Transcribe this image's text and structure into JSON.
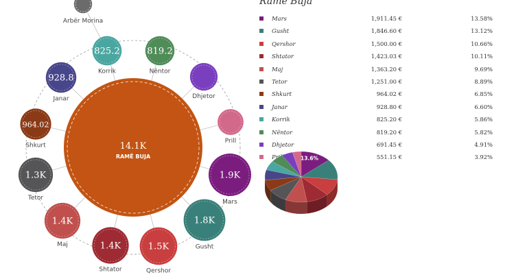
{
  "chart_data": {
    "type": "bubble-pie",
    "title": "Ramë Buja",
    "center": {
      "label": "14.1K",
      "name": "RAMË BUJA",
      "value": 14100,
      "color": "#c35413"
    },
    "categories": [
      {
        "name": "Mars",
        "short": "1.9K",
        "value": 1911.45,
        "value_label": "1,911.45 €",
        "pct": "13.58%",
        "color": "#7b1d7e"
      },
      {
        "name": "Gusht",
        "short": "1.8K",
        "value": 1846.6,
        "value_label": "1,846.60 €",
        "pct": "13.12%",
        "color": "#3a807a"
      },
      {
        "name": "Qershor",
        "short": "1.5K",
        "value": 1500.0,
        "value_label": "1,500.00 €",
        "pct": "10.66%",
        "color": "#c93e3e"
      },
      {
        "name": "Shtator",
        "short": "1.4K",
        "value": 1423.03,
        "value_label": "1,423.03 €",
        "pct": "10.11%",
        "color": "#9e2a33"
      },
      {
        "name": "Maj",
        "short": "1.4K",
        "value": 1363.2,
        "value_label": "1,363.20 €",
        "pct": "9.69%",
        "color": "#c0504d"
      },
      {
        "name": "Tetor",
        "short": "1.3K",
        "value": 1251.0,
        "value_label": "1,251.00 €",
        "pct": "8.89%",
        "color": "#555558"
      },
      {
        "name": "Shkurt",
        "short": "964.02",
        "value": 964.02,
        "value_label": "964.02 €",
        "pct": "6.85%",
        "color": "#8a3a16"
      },
      {
        "name": "Janar",
        "short": "928.8",
        "value": 928.8,
        "value_label": "928.80 €",
        "pct": "6.60%",
        "color": "#48468a"
      },
      {
        "name": "Korrik",
        "short": "825.2",
        "value": 825.2,
        "value_label": "825.20 €",
        "pct": "5.86%",
        "color": "#4aa6a0"
      },
      {
        "name": "Nëntor",
        "short": "819.2",
        "value": 819.2,
        "value_label": "819.20 €",
        "pct": "5.82%",
        "color": "#4f8c57"
      },
      {
        "name": "Dhjetor",
        "short": "",
        "value": 691.45,
        "value_label": "691.45 €",
        "pct": "4.91%",
        "color": "#7a3fbf"
      },
      {
        "name": "Prill",
        "short": "",
        "value": 551.15,
        "value_label": "551.15 €",
        "pct": "3.92%",
        "color": "#d3698a"
      }
    ],
    "extra_nodes": [
      {
        "name": "Arbër Morina",
        "color": "#6b6b6b"
      }
    ],
    "pie_highlight_label": "13.6%"
  }
}
